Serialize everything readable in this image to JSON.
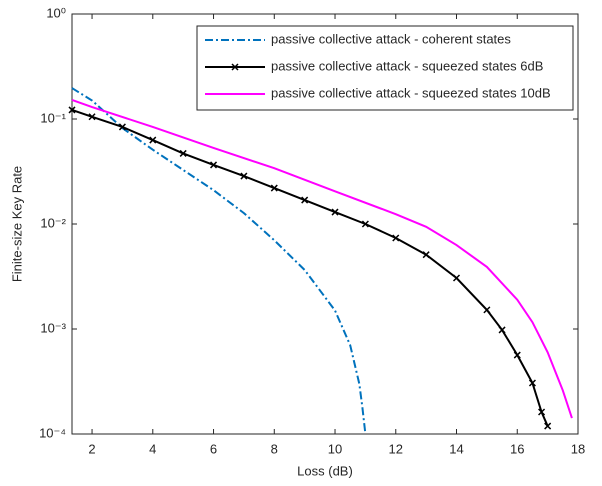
{
  "chart_data": {
    "type": "line",
    "x_label": "Loss (dB)",
    "y_label": "Finite-size Key Rate",
    "xlim": [
      1.34,
      18
    ],
    "ylim": [
      0.0001,
      1
    ],
    "log_y": true,
    "xticks": [
      2,
      4,
      6,
      8,
      10,
      12,
      14,
      16,
      18
    ],
    "yticks": [
      {
        "value": 0.0001,
        "label": "10⁻⁴"
      },
      {
        "value": 0.001,
        "label": "10⁻³"
      },
      {
        "value": 0.01,
        "label": "10⁻²"
      },
      {
        "value": 0.1,
        "label": "10⁻¹"
      },
      {
        "value": 1,
        "label": "10⁰"
      }
    ],
    "legend": "upper right",
    "series": [
      {
        "name": "passive collective attack - coherent states",
        "color": "#0072BD",
        "style": "dash-dot",
        "marker": "none",
        "x": [
          1.34,
          2,
          3,
          4,
          5,
          6,
          7,
          8,
          9,
          10,
          10.5,
          10.8,
          10.9,
          11.0
        ],
        "values": [
          0.197,
          0.15,
          0.082,
          0.051,
          0.0327,
          0.021,
          0.0127,
          0.007,
          0.00365,
          0.0015,
          0.0007,
          0.0003,
          0.00018,
          0.0001
        ]
      },
      {
        "name": "passive collective attack - squeezed states 6dB",
        "color": "#000000",
        "style": "solid",
        "marker": "x",
        "x": [
          1.34,
          2,
          3,
          4,
          5,
          6,
          7,
          8,
          9,
          10,
          11,
          12,
          13,
          14,
          15,
          15.5,
          16,
          16.5,
          16.8,
          17
        ],
        "values": [
          0.122,
          0.105,
          0.084,
          0.063,
          0.047,
          0.0365,
          0.0286,
          0.022,
          0.0169,
          0.013,
          0.01,
          0.00736,
          0.0051,
          0.00306,
          0.00152,
          0.00098,
          0.000565,
          0.000306,
          0.000162,
          0.000119
        ]
      },
      {
        "name": "passive collective attack - squeezed states 10dB",
        "color": "#FF00FF",
        "style": "solid",
        "marker": "none",
        "x": [
          1.34,
          2,
          4,
          6,
          8,
          10,
          12,
          13,
          14,
          15,
          16,
          16.5,
          17,
          17.5,
          17.8
        ],
        "values": [
          0.152,
          0.13,
          0.084,
          0.053,
          0.034,
          0.0205,
          0.0124,
          0.0094,
          0.0063,
          0.0039,
          0.0019,
          0.00116,
          0.0006,
          0.00026,
          0.000142
        ]
      }
    ]
  }
}
